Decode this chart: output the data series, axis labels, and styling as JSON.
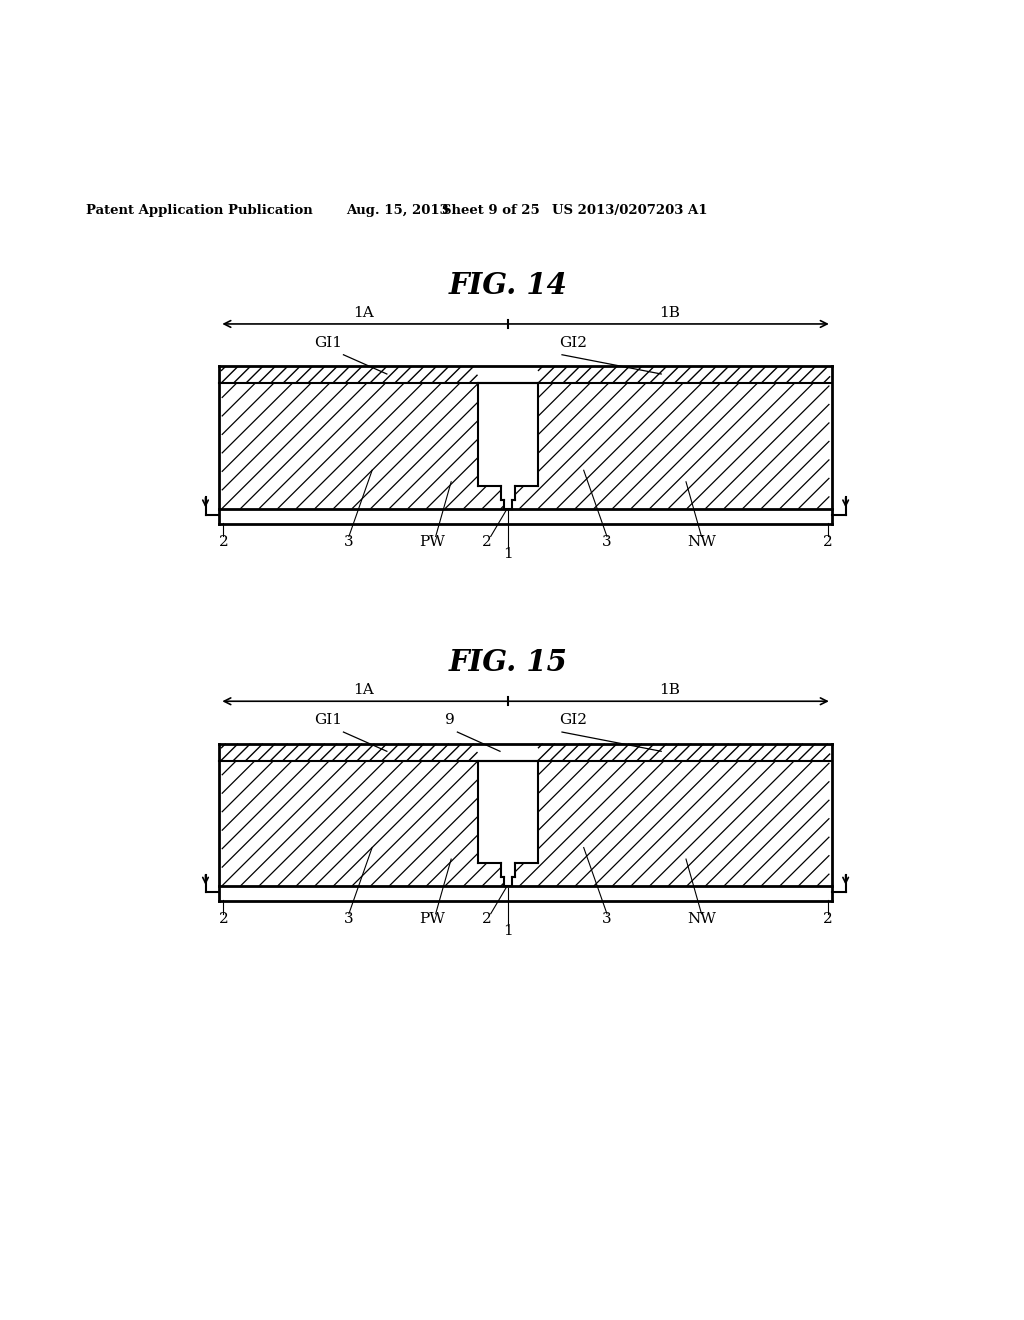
{
  "bg_color": "#ffffff",
  "header_text": "Patent Application Publication",
  "header_date": "Aug. 15, 2013",
  "header_sheet": "Sheet 9 of 25",
  "header_patent": "US 2013/0207203 A1",
  "fig14_title": "FIG. 14",
  "fig15_title": "FIG. 15",
  "label_1A": "1A",
  "label_1B": "1B",
  "label_GI1": "GI1",
  "label_GI2": "GI2",
  "label_2_left": "2",
  "label_3_left": "3",
  "label_PW": "PW",
  "label_2_center": "2",
  "label_1": "1",
  "label_3_right": "3",
  "label_NW": "NW",
  "label_2_right": "2",
  "label_9": "9"
}
